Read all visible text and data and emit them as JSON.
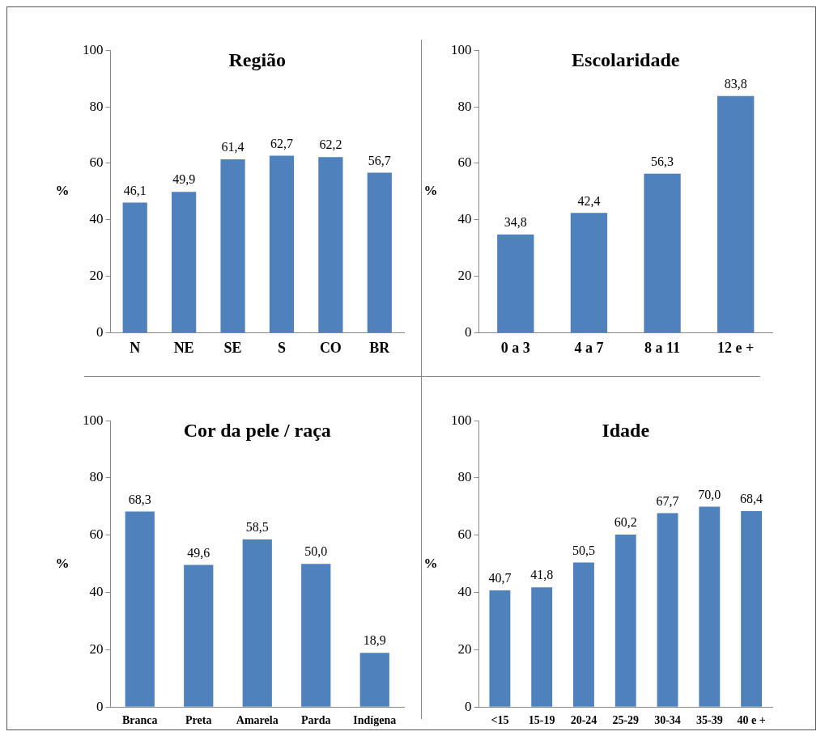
{
  "chart_data": [
    {
      "type": "bar",
      "title": "Região",
      "ylabel": "%",
      "categories": [
        "N",
        "NE",
        "SE",
        "S",
        "CO",
        "BR"
      ],
      "values": [
        46.1,
        49.9,
        61.4,
        62.7,
        62.2,
        56.7
      ],
      "value_labels": [
        "46,1",
        "49,9",
        "61,4",
        "62,7",
        "62,2",
        "56,7"
      ],
      "color": "#4f81bd",
      "ylim": [
        0,
        100
      ],
      "yticks": [
        0,
        20,
        40,
        60,
        80,
        100
      ]
    },
    {
      "type": "bar",
      "title": "Escolaridade",
      "ylabel": "%",
      "categories": [
        "0 a 3",
        "4 a 7",
        "8 a 11",
        "12 e +"
      ],
      "values": [
        34.8,
        42.4,
        56.3,
        83.8
      ],
      "value_labels": [
        "34,8",
        "42,4",
        "56,3",
        "83,8"
      ],
      "color": "#4f81bd",
      "ylim": [
        0,
        100
      ],
      "yticks": [
        0,
        20,
        40,
        60,
        80,
        100
      ]
    },
    {
      "type": "bar",
      "title": "Cor da pele / raça",
      "ylabel": "%",
      "categories": [
        "Branca",
        "Preta",
        "Amarela",
        "Parda",
        "Indígena"
      ],
      "values": [
        68.3,
        49.6,
        58.5,
        50.0,
        18.9
      ],
      "value_labels": [
        "68,3",
        "49,6",
        "58,5",
        "50,0",
        "18,9"
      ],
      "color": "#4f81bd",
      "ylim": [
        0,
        100
      ],
      "yticks": [
        0,
        20,
        40,
        60,
        80,
        100
      ]
    },
    {
      "type": "bar",
      "title": "Idade",
      "ylabel": "%",
      "categories": [
        "<15",
        "15-19",
        "20-24",
        "25-29",
        "30-34",
        "35-39",
        "40 e +"
      ],
      "values": [
        40.7,
        41.8,
        50.5,
        60.2,
        67.7,
        70.0,
        68.4
      ],
      "value_labels": [
        "40,7",
        "41,8",
        "50,5",
        "60,2",
        "67,7",
        "70,0",
        "68,4"
      ],
      "color": "#4f81bd",
      "ylim": [
        0,
        100
      ],
      "yticks": [
        0,
        20,
        40,
        60,
        80,
        100
      ]
    }
  ]
}
